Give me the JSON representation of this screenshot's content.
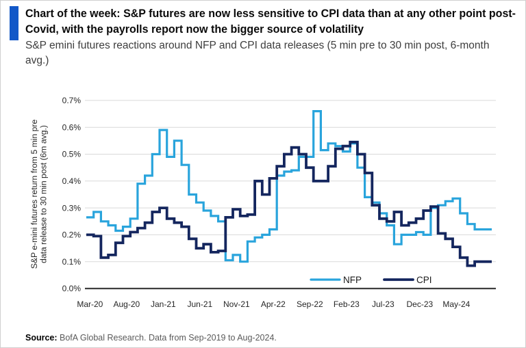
{
  "header": {
    "title_line1": "Chart of the week: S&P futures are now less sensitive to CPI data than at any other point post-",
    "title_line2": "Covid, with the payrolls report now the bigger source of volatility",
    "subtitle_line1": "S&P emini futures reactions around NFP and CPI data releases (5 min pre to 30 min post, 6-month",
    "subtitle_line2": "avg.)"
  },
  "source": {
    "label": "Source:",
    "text": " BofA Global Research. Data from Sep-2019 to Aug-2024."
  },
  "colors": {
    "accent_bar": "#1258C8",
    "nfp": "#29A4DC",
    "cpi": "#14265E",
    "grid": "#d9d9d9",
    "axis": "#3f3f3f",
    "tick_text": "#262626",
    "legend_text": "#1a1a1a"
  },
  "chart_data": {
    "type": "line",
    "subtype": "step",
    "title": "S&P emini futures reactions around NFP and CPI data releases (5 min pre to 30 min post, 6-month avg.)",
    "ylabel_line1": "S&P e-mini futures return from 5 min pre",
    "ylabel_line2": "data release to 30 min post (6m avg.)",
    "ylim": [
      0.0,
      0.7
    ],
    "grid": "horizontal",
    "legend_position": "bottom-inside",
    "y_ticks": [
      {
        "v": 0.0,
        "label": "0.0%"
      },
      {
        "v": 0.1,
        "label": "0.1%"
      },
      {
        "v": 0.2,
        "label": "0.2%"
      },
      {
        "v": 0.3,
        "label": "0.3%"
      },
      {
        "v": 0.4,
        "label": "0.4%"
      },
      {
        "v": 0.5,
        "label": "0.5%"
      },
      {
        "v": 0.6,
        "label": "0.6%"
      },
      {
        "v": 0.7,
        "label": "0.7%"
      }
    ],
    "x_ticks": [
      {
        "m": 0,
        "label": "Mar-20"
      },
      {
        "m": 5,
        "label": "Aug-20"
      },
      {
        "m": 10,
        "label": "Jan-21"
      },
      {
        "m": 15,
        "label": "Jun-21"
      },
      {
        "m": 20,
        "label": "Nov-21"
      },
      {
        "m": 25,
        "label": "Apr-22"
      },
      {
        "m": 30,
        "label": "Sep-22"
      },
      {
        "m": 35,
        "label": "Feb-23"
      },
      {
        "m": 40,
        "label": "Jul-23"
      },
      {
        "m": 45,
        "label": "Dec-23"
      },
      {
        "m": 50,
        "label": "May-24"
      }
    ],
    "categories": [
      "Mar-20",
      "Apr-20",
      "May-20",
      "Jun-20",
      "Jul-20",
      "Aug-20",
      "Sep-20",
      "Oct-20",
      "Nov-20",
      "Dec-20",
      "Jan-21",
      "Feb-21",
      "Mar-21",
      "Apr-21",
      "May-21",
      "Jun-21",
      "Jul-21",
      "Aug-21",
      "Sep-21",
      "Oct-21",
      "Nov-21",
      "Dec-21",
      "Jan-22",
      "Feb-22",
      "Mar-22",
      "Apr-22",
      "May-22",
      "Jun-22",
      "Jul-22",
      "Aug-22",
      "Sep-22",
      "Oct-22",
      "Nov-22",
      "Dec-22",
      "Jan-23",
      "Feb-23",
      "Mar-23",
      "Apr-23",
      "May-23",
      "Jun-23",
      "Jul-23",
      "Aug-23",
      "Sep-23",
      "Oct-23",
      "Nov-23",
      "Dec-23",
      "Jan-24",
      "Feb-24",
      "Mar-24",
      "Apr-24",
      "May-24",
      "Jun-24",
      "Jul-24",
      "Aug-24"
    ],
    "series": [
      {
        "name": "NFP",
        "values": [
          0.265,
          0.285,
          0.25,
          0.235,
          0.215,
          0.23,
          0.26,
          0.39,
          0.42,
          0.5,
          0.59,
          0.49,
          0.55,
          0.46,
          0.35,
          0.32,
          0.29,
          0.27,
          0.25,
          0.105,
          0.125,
          0.1,
          0.175,
          0.19,
          0.2,
          0.22,
          0.42,
          0.435,
          0.44,
          0.49,
          0.49,
          0.66,
          0.515,
          0.54,
          0.53,
          0.51,
          0.54,
          0.45,
          0.34,
          0.32,
          0.28,
          0.235,
          0.165,
          0.2,
          0.2,
          0.21,
          0.2,
          0.3,
          0.31,
          0.325,
          0.335,
          0.28,
          0.24,
          0.22
        ]
      },
      {
        "name": "CPI",
        "values": [
          0.2,
          0.195,
          0.115,
          0.125,
          0.17,
          0.195,
          0.21,
          0.225,
          0.245,
          0.285,
          0.3,
          0.26,
          0.245,
          0.23,
          0.185,
          0.15,
          0.165,
          0.135,
          0.14,
          0.265,
          0.295,
          0.27,
          0.275,
          0.4,
          0.35,
          0.41,
          0.455,
          0.5,
          0.525,
          0.5,
          0.45,
          0.4,
          0.4,
          0.455,
          0.52,
          0.53,
          0.545,
          0.5,
          0.43,
          0.31,
          0.26,
          0.25,
          0.285,
          0.235,
          0.245,
          0.26,
          0.29,
          0.305,
          0.205,
          0.185,
          0.155,
          0.115,
          0.085,
          0.1
        ]
      }
    ],
    "legend": [
      {
        "label": "NFP",
        "series": "NFP"
      },
      {
        "label": "CPI",
        "series": "CPI"
      }
    ]
  }
}
